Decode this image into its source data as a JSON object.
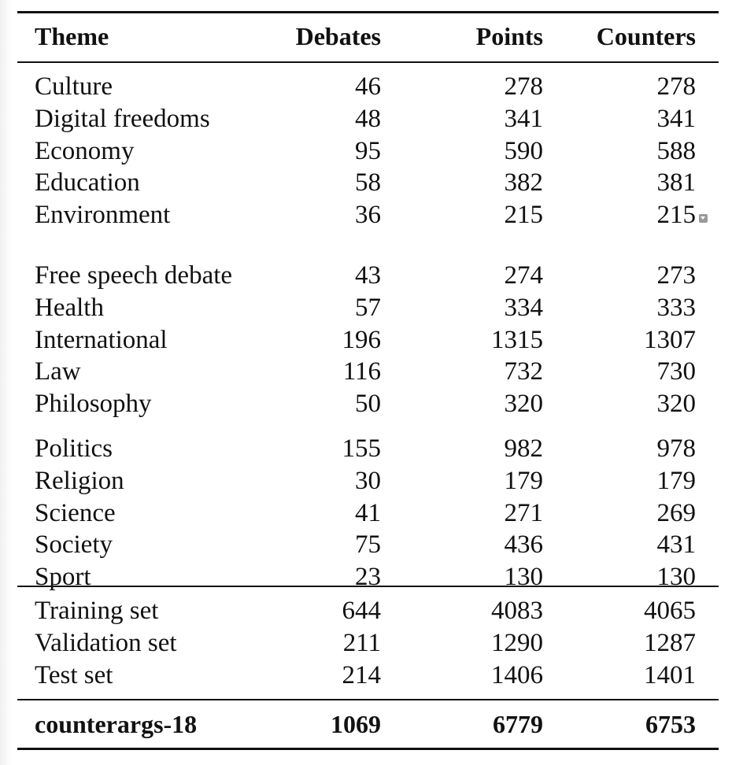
{
  "table": {
    "columns": [
      "Theme",
      "Debates",
      "Points",
      "Counters"
    ],
    "groups": [
      [
        [
          "Culture",
          "46",
          "278",
          "278"
        ],
        [
          "Digital freedoms",
          "48",
          "341",
          "341"
        ],
        [
          "Economy",
          "95",
          "590",
          "588"
        ],
        [
          "Education",
          "58",
          "382",
          "381"
        ],
        [
          "Environment",
          "36",
          "215",
          "215"
        ]
      ],
      [
        [
          "Free speech debate",
          "43",
          "274",
          "273"
        ],
        [
          "Health",
          "57",
          "334",
          "333"
        ],
        [
          "International",
          "196",
          "1315",
          "1307"
        ],
        [
          "Law",
          "116",
          "732",
          "730"
        ],
        [
          "Philosophy",
          "50",
          "320",
          "320"
        ]
      ],
      [
        [
          "Politics",
          "155",
          "982",
          "978"
        ],
        [
          "Religion",
          "30",
          "179",
          "179"
        ],
        [
          "Science",
          "41",
          "271",
          "269"
        ],
        [
          "Society",
          "75",
          "436",
          "431"
        ],
        [
          "Sport",
          "23",
          "130",
          "130"
        ]
      ]
    ],
    "splits": [
      [
        "Training set",
        "644",
        "4083",
        "4065"
      ],
      [
        "Validation set",
        "211",
        "1290",
        "1287"
      ],
      [
        "Test set",
        "214",
        "1406",
        "1401"
      ]
    ],
    "total": [
      "counterargs-18",
      "1069",
      "6779",
      "6753"
    ]
  },
  "icons": {
    "comment_marker": "comment-marker-icon"
  },
  "colors": {
    "text": "#111111",
    "rule": "#111111",
    "marker": "#9a9a9a"
  }
}
